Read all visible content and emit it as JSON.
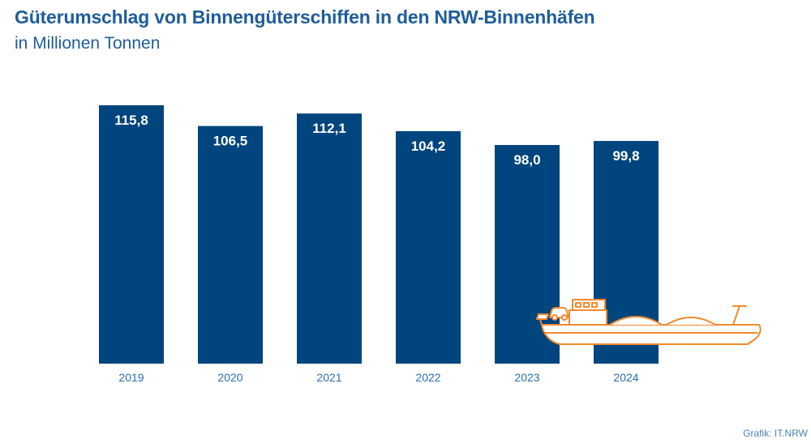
{
  "header": {
    "title": "Güterumschlag von Binnengüterschiffen in den NRW-Binnenhäfen",
    "subtitle": "in Millionen Tonnen"
  },
  "source": "Grafik: IT.NRW",
  "colors": {
    "bar": "#00457d",
    "text_accent": "#1f5d99",
    "ship_outline": "#f28a2e"
  },
  "icons": [
    "ship-icon"
  ],
  "chart_data": {
    "type": "bar",
    "categories": [
      "2019",
      "2020",
      "2021",
      "2022",
      "2023",
      "2024"
    ],
    "values": [
      115.8,
      106.5,
      112.1,
      104.2,
      98.0,
      99.8
    ],
    "value_labels": [
      "115,8",
      "106,5",
      "112,1",
      "104,2",
      "98,0",
      "99,8"
    ],
    "title": "Güterumschlag von Binnengüterschiffen in den NRW-Binnenhäfen",
    "subtitle": "in Millionen Tonnen",
    "ylim": [
      0,
      115.8
    ],
    "grid": false,
    "legend": "none"
  }
}
